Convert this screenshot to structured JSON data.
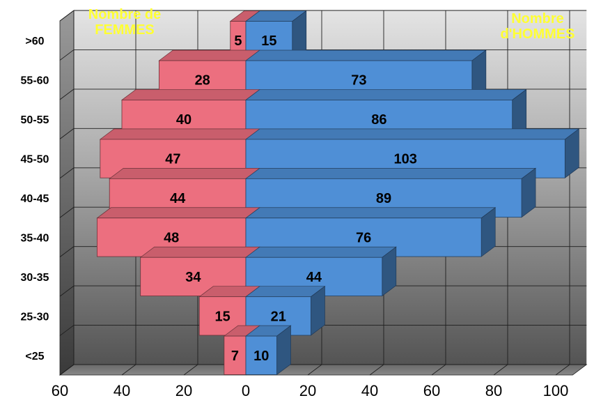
{
  "chart_data": {
    "type": "bar",
    "subtype": "population-pyramid-3d",
    "categories": [
      ">60",
      "55-60",
      "50-55",
      "45-50",
      "40-45",
      "35-40",
      "30-35",
      "25-30",
      "<25"
    ],
    "series": [
      {
        "name": "Nombre de FEMMES",
        "side": "left",
        "color": "#ec6f7f",
        "values": [
          5,
          28,
          40,
          47,
          44,
          48,
          34,
          15,
          7
        ]
      },
      {
        "name": "Nombre d'HOMMES",
        "side": "right",
        "color": "#4f8fd6",
        "values": [
          15,
          73,
          86,
          103,
          89,
          76,
          44,
          21,
          10
        ]
      }
    ],
    "xlim": [
      -60,
      105
    ],
    "xticks": [
      -60,
      -40,
      -20,
      0,
      20,
      40,
      60,
      80,
      100
    ],
    "xtick_labels": [
      "60",
      "40",
      "20",
      "0",
      "20",
      "40",
      "60",
      "80",
      "100"
    ],
    "grid": true,
    "colors": {
      "women": "#ec6f7f",
      "men": "#4f8fd6",
      "title_text": "#ffff33",
      "wall_top": "#e2e2e2",
      "wall_bottom": "#555555"
    }
  },
  "titles": {
    "women_line1": "Nombre de",
    "women_line2": "FEMMES",
    "men_line1": "Nombre",
    "men_line2": "d'HOMMES"
  }
}
